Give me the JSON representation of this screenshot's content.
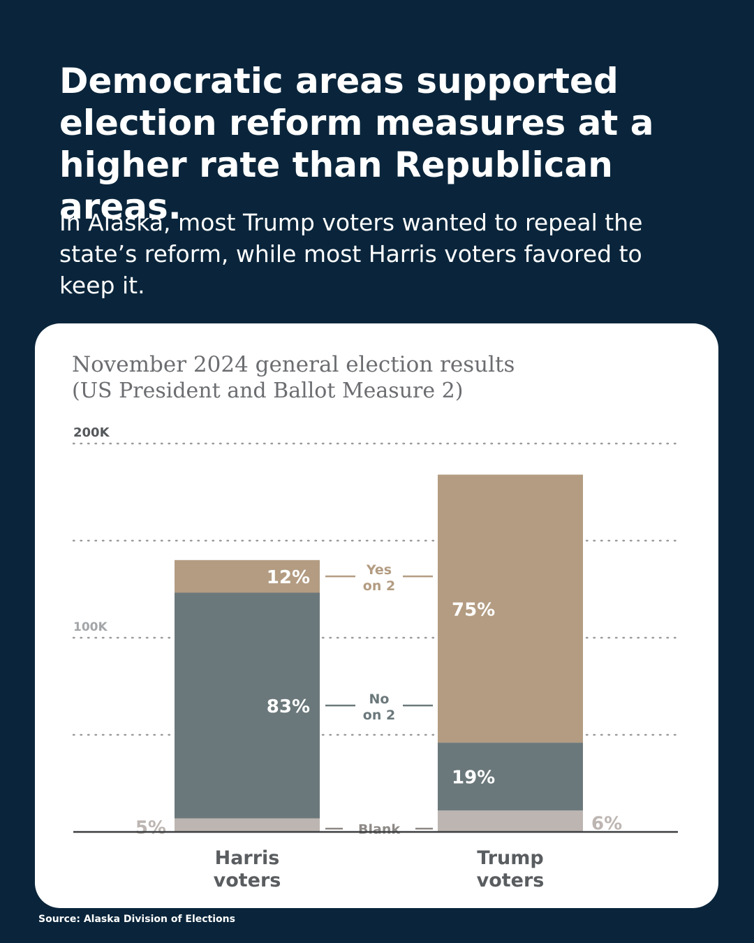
{
  "headline": "Democratic areas supported election reform measures at a higher rate than Republican areas.",
  "subhead": "In Alaska, most Trump voters wanted to repeal the state’s reform, while most Harris voters favored to keep it.",
  "source": "Source: Alaska Division of Elections",
  "colors": {
    "background": "#0a253b",
    "yes": "#b39c82",
    "no": "#6b787b",
    "blank": "#bcb5b1"
  },
  "chart_data": {
    "type": "bar",
    "stacked": true,
    "title_line1": "November 2024 general election results",
    "title_line2": "(US President and Ballot Measure 2)",
    "categories": [
      {
        "line1": "Harris",
        "line2": "voters"
      },
      {
        "line1": "Trump",
        "line2": "voters"
      }
    ],
    "totals": [
      140000,
      184000
    ],
    "ylim": [
      0,
      200000
    ],
    "y_gridlines": [
      50000,
      100000,
      150000,
      200000
    ],
    "y_tick_labels": [
      {
        "value": 100000,
        "label": "100K"
      },
      {
        "value": 200000,
        "label": "200K"
      }
    ],
    "series": [
      {
        "key": "blank",
        "percents": [
          5,
          6
        ],
        "labels": [
          "5%",
          "6%"
        ],
        "middle_label_line1": "Blank",
        "middle_label_line2": ""
      },
      {
        "key": "no",
        "percents": [
          83,
          19
        ],
        "labels": [
          "83%",
          "19%"
        ],
        "middle_label_line1": "No",
        "middle_label_line2": "on 2"
      },
      {
        "key": "yes",
        "percents": [
          12,
          75
        ],
        "labels": [
          "12%",
          "75%"
        ],
        "middle_label_line1": "Yes",
        "middle_label_line2": "on 2"
      }
    ],
    "grid": true,
    "legend": "none"
  }
}
